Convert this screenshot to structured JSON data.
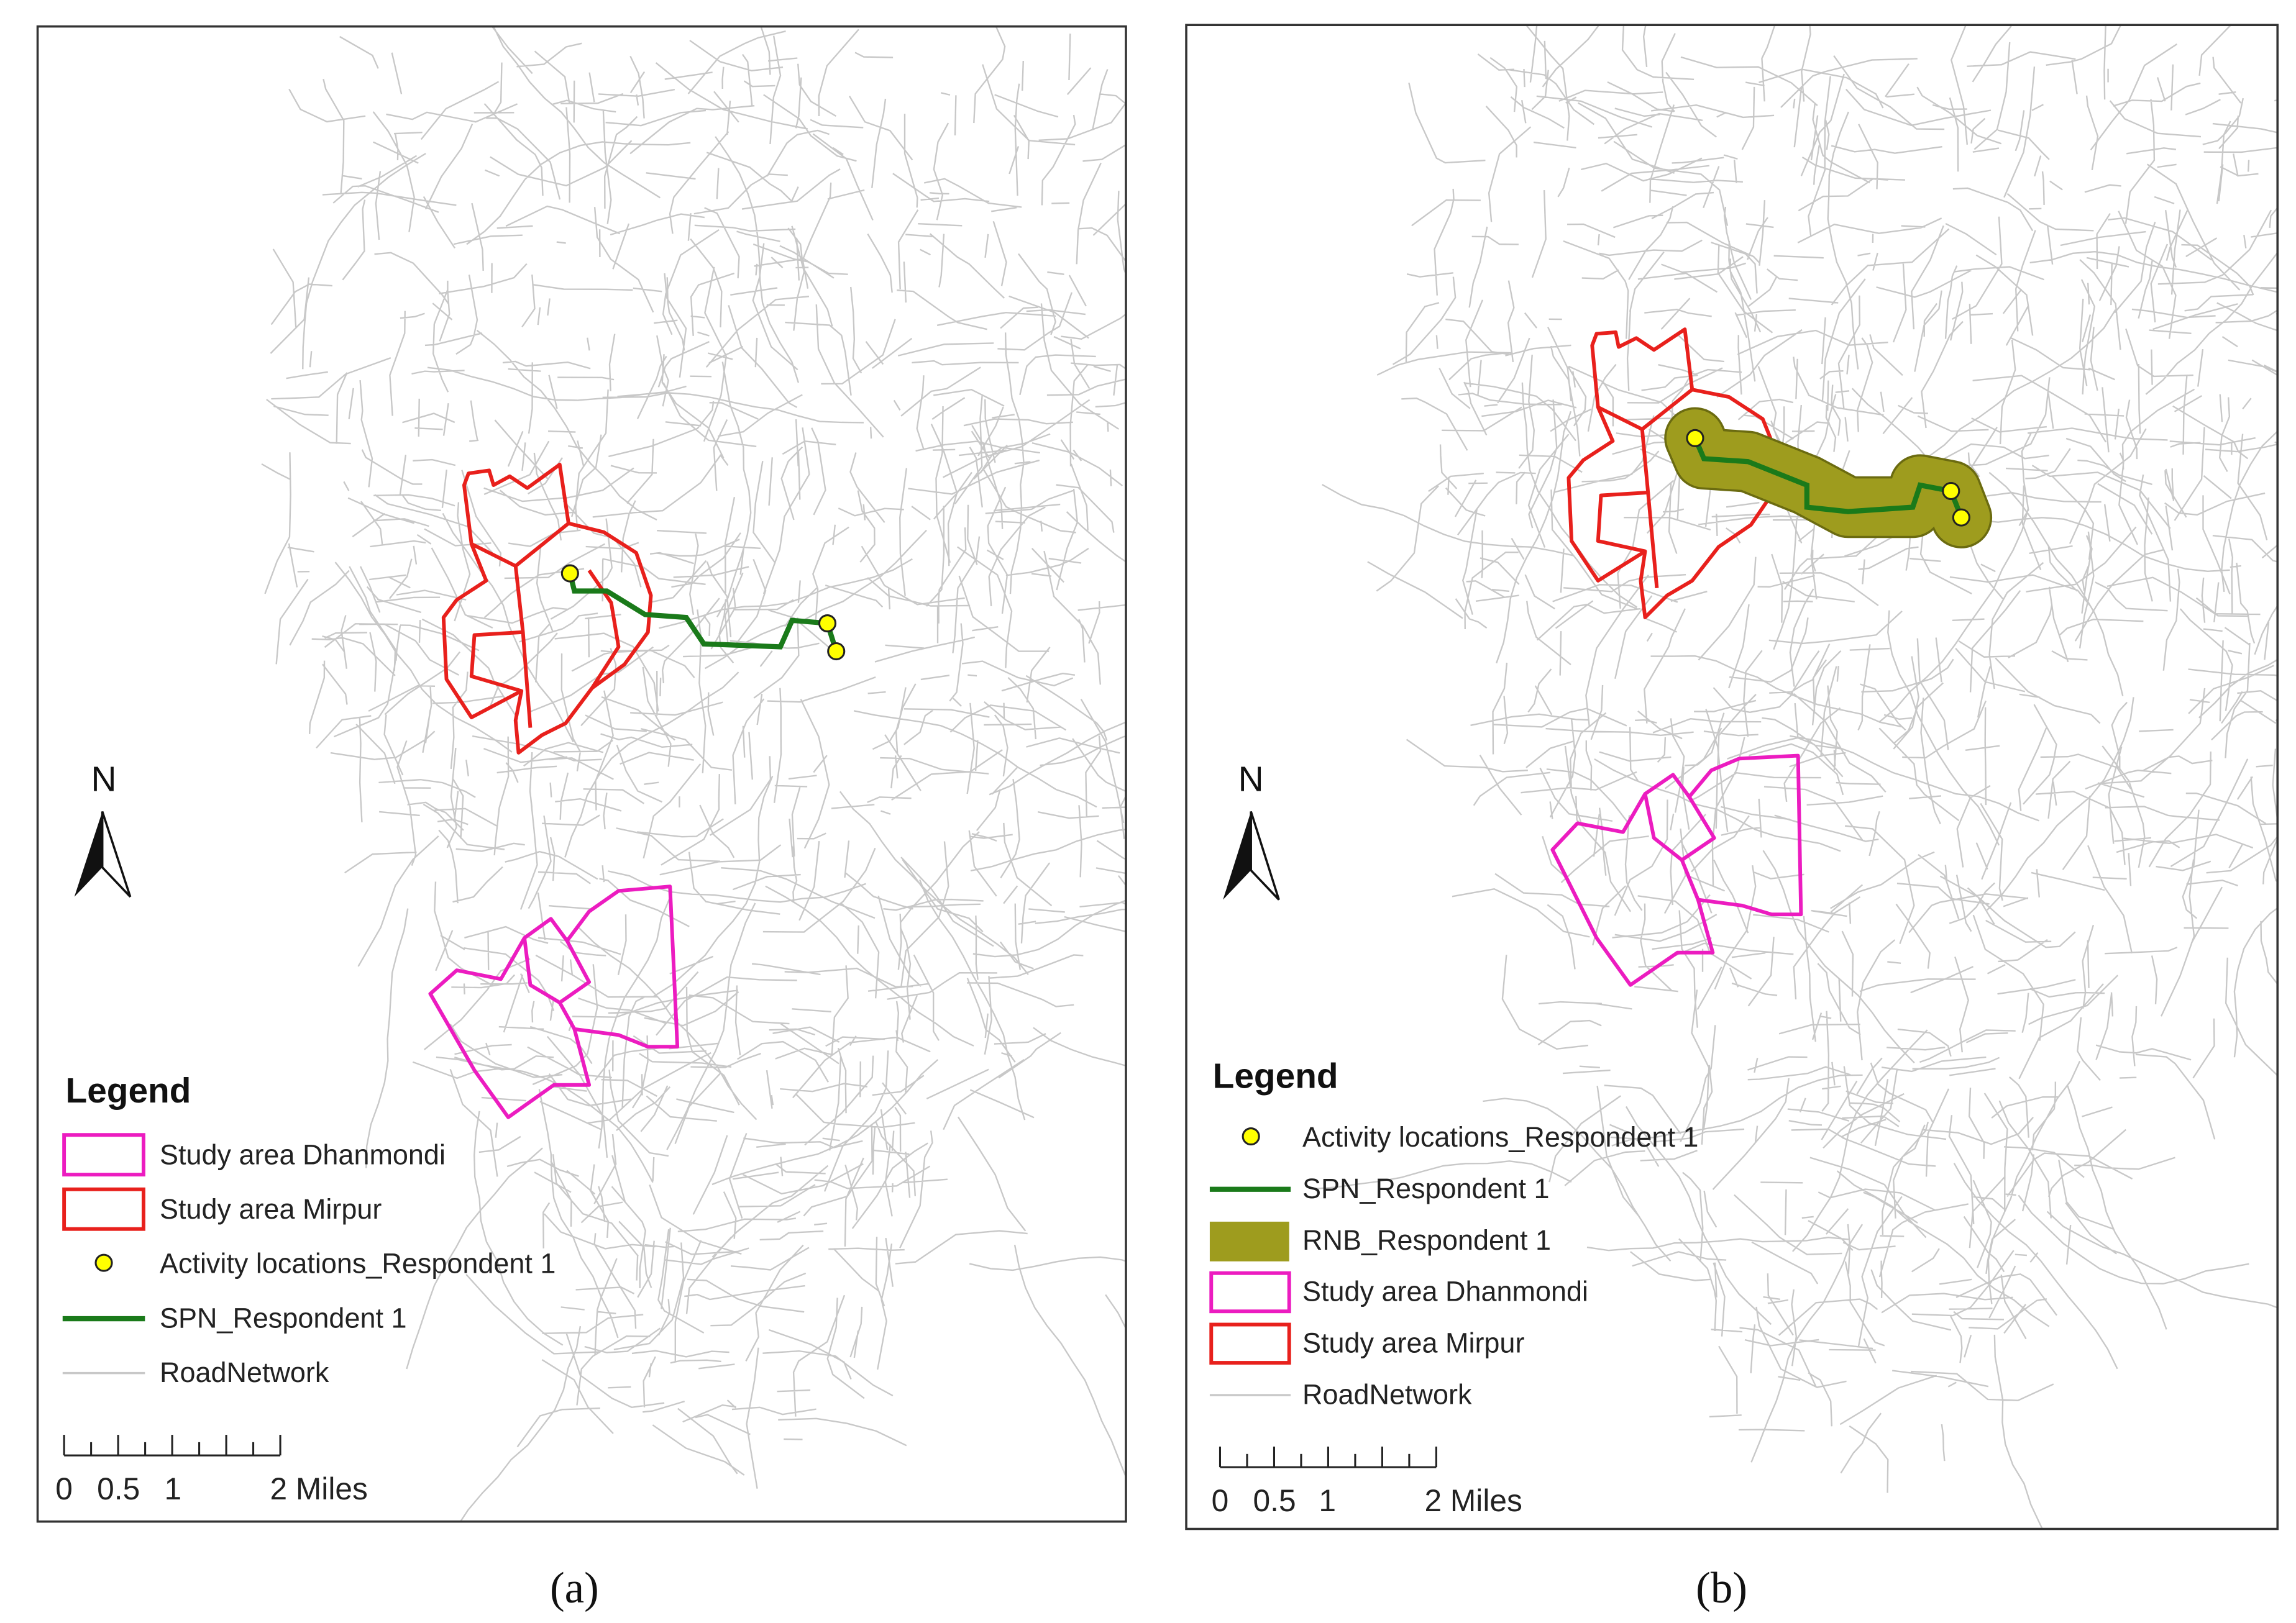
{
  "panels": [
    {
      "caption": "(a)",
      "north": "N",
      "legend": {
        "title": "Legend",
        "items": [
          "Study area Dhanmondi",
          "Study area Mirpur",
          "Activity locations_Respondent 1",
          "SPN_Respondent 1",
          "RoadNetwork"
        ]
      },
      "scale": {
        "labels": [
          "0",
          "0.5",
          "1",
          "2 Miles"
        ]
      }
    },
    {
      "caption": "(b)",
      "north": "N",
      "legend": {
        "title": "Legend",
        "items": [
          "Activity locations_Respondent 1",
          "SPN_Respondent 1",
          "RNB_Respondent 1",
          "Study area Dhanmondi",
          "Study area Mirpur",
          "RoadNetwork"
        ]
      },
      "scale": {
        "labels": [
          "0",
          "0.5",
          "1",
          "2 Miles"
        ]
      }
    }
  ]
}
